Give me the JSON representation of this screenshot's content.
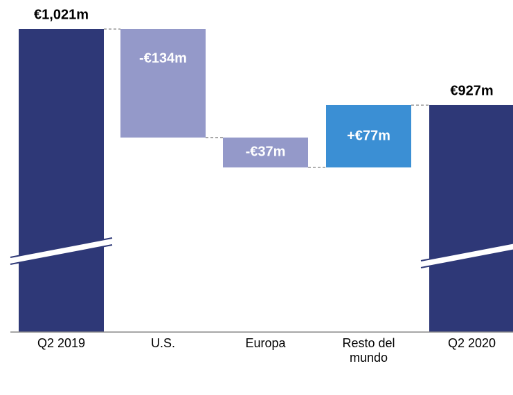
{
  "chart_data": {
    "type": "waterfall",
    "categories": [
      "Q2 2019",
      "U.S.",
      "Europa",
      "Resto del mundo",
      "Q2 2020"
    ],
    "values": [
      1021,
      -134,
      -37,
      77,
      927
    ],
    "value_labels": [
      "€1,021m",
      "-€134m",
      "-€37m",
      "+€77m",
      "€927m"
    ],
    "colors": [
      "#2e3877",
      "#9499c9",
      "#9499c9",
      "#3b8fd4",
      "#2e3877"
    ]
  }
}
